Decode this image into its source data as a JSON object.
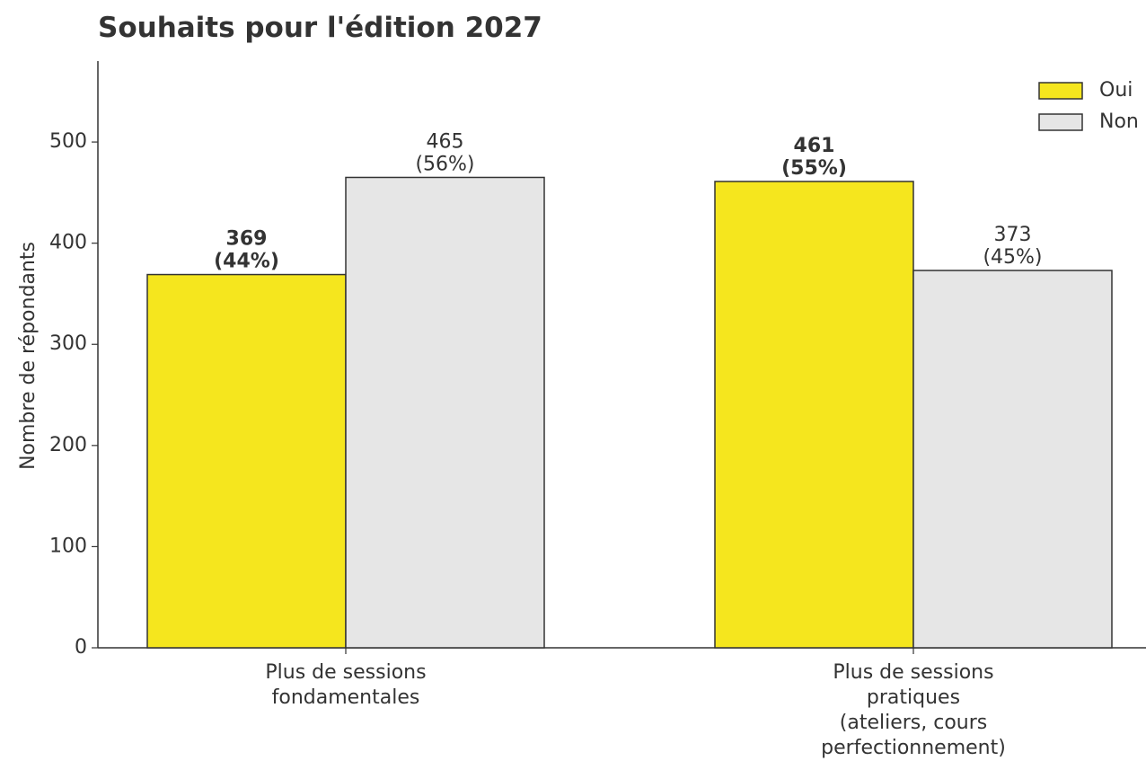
{
  "chart_data": {
    "type": "bar",
    "title": "Souhaits pour l'édition 2027",
    "y_label": "Nombre de répondants",
    "categories": [
      [
        "Plus de sessions",
        "fondamentales"
      ],
      [
        "Plus de sessions",
        "pratiques",
        "(ateliers, cours",
        "perfectionnement)"
      ]
    ],
    "series": [
      {
        "name": "Oui",
        "color": "#f5e61e",
        "values": [
          369,
          461
        ],
        "value_labels": [
          [
            "369",
            "(44%)"
          ],
          [
            "461",
            "(55%)"
          ]
        ],
        "bold_labels": true
      },
      {
        "name": "Non",
        "color": "#e6e6e6",
        "values": [
          465,
          373
        ],
        "value_labels": [
          [
            "465",
            "(56%)"
          ],
          [
            "373",
            "(45%)"
          ]
        ],
        "bold_labels": false
      }
    ],
    "ylim": [
      0,
      580
    ],
    "yticks": [
      0,
      100,
      200,
      300,
      400,
      500
    ],
    "legend": "upper right",
    "edge_color": "#333333"
  }
}
